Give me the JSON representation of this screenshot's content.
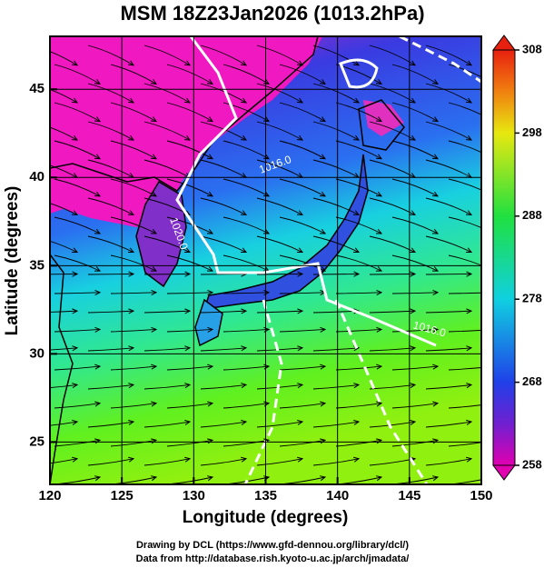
{
  "map": {
    "title": "MSM 18Z23Jan2026 (1013.2hPa)",
    "xlabel": "Longitude (degrees)",
    "ylabel": "Latitude  (degrees)",
    "xlim": [
      120,
      150
    ],
    "ylim": [
      22.6,
      48
    ],
    "xticks": [
      120,
      125,
      130,
      135,
      140,
      145,
      150
    ],
    "yticks": [
      25,
      30,
      35,
      40,
      45
    ],
    "grid": true,
    "colorbar": {
      "lim": [
        258,
        308
      ],
      "ticks": [
        258,
        268,
        278,
        288,
        298,
        308
      ]
    },
    "contour_labels": [
      "1016.0",
      "1020.0",
      "1016.0"
    ],
    "credits": [
      "Drawing by DCL (https://www.gfd-dennou.org/library/dcl/)",
      "Data from http://database.rish.kyoto-u.ac.jp/arch/jmadata/"
    ]
  }
}
